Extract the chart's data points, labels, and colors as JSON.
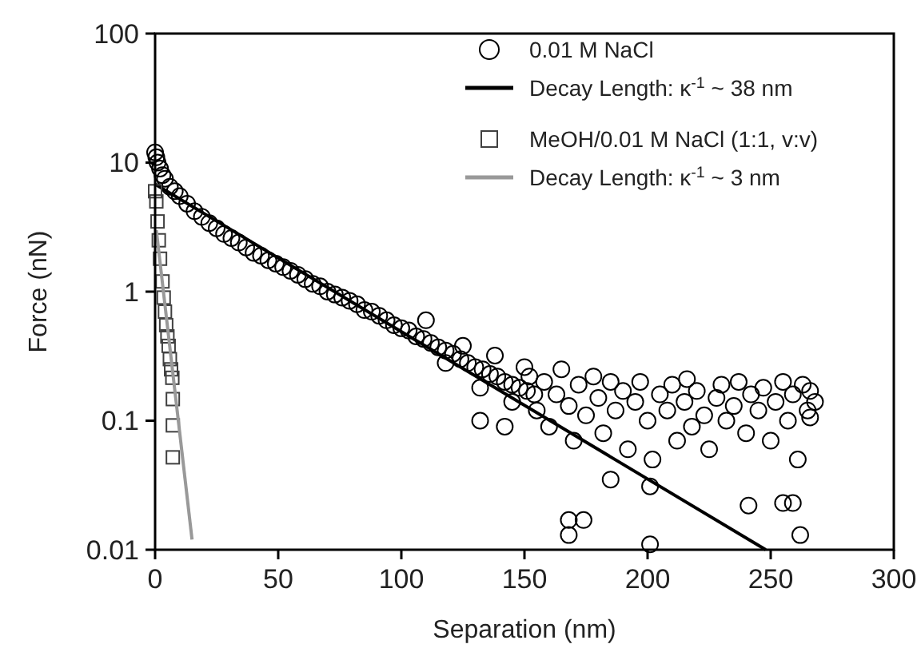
{
  "chart_data": {
    "type": "scatter",
    "xlabel": "Separation (nm)",
    "ylabel": "Force (nN)",
    "log": "y",
    "xlim": [
      0,
      300
    ],
    "ylim": [
      0.01,
      100
    ],
    "xticks": [
      0,
      50,
      100,
      150,
      200,
      250,
      300
    ],
    "yticks": [
      0.01,
      0.1,
      1,
      10,
      100
    ],
    "grid": false,
    "legend": "top right",
    "series": [
      {
        "name": "0.01 M NaCl",
        "marker": "circle",
        "color": "#000000",
        "x": [
          0,
          0.5,
          1,
          2,
          3,
          4,
          6,
          8,
          10,
          13,
          16,
          19,
          22,
          25,
          28,
          31,
          34,
          37,
          40,
          43,
          46,
          49,
          52,
          55,
          58,
          61,
          64,
          67,
          70,
          73,
          76,
          79,
          82,
          85,
          88,
          91,
          94,
          97,
          100,
          103,
          106,
          109,
          112,
          115,
          118,
          121,
          124,
          127,
          130,
          133,
          136,
          139,
          142,
          145,
          148,
          151,
          154,
          110,
          118,
          125,
          132,
          138,
          145,
          150,
          152,
          155,
          158,
          160,
          163,
          165,
          168,
          170,
          172,
          175,
          178,
          180,
          182,
          185,
          187,
          190,
          192,
          195,
          197,
          200,
          202,
          205,
          208,
          210,
          212,
          215,
          216,
          218,
          220,
          223,
          225,
          228,
          230,
          232,
          235,
          237,
          240,
          242,
          245,
          247,
          250,
          252,
          255,
          257,
          259,
          261,
          263,
          265,
          266,
          268,
          168,
          168,
          174,
          201,
          262,
          241,
          255,
          259,
          132,
          142,
          185,
          201,
          266
        ],
        "values": [
          12,
          11,
          10,
          9,
          8,
          7.5,
          6.5,
          6,
          5.5,
          4.8,
          4.2,
          3.8,
          3.4,
          3.1,
          2.8,
          2.6,
          2.4,
          2.2,
          2,
          1.9,
          1.75,
          1.65,
          1.55,
          1.45,
          1.35,
          1.25,
          1.15,
          1.1,
          1,
          0.95,
          0.9,
          0.85,
          0.8,
          0.72,
          0.7,
          0.65,
          0.6,
          0.55,
          0.52,
          0.5,
          0.45,
          0.43,
          0.4,
          0.37,
          0.35,
          0.33,
          0.3,
          0.28,
          0.26,
          0.25,
          0.23,
          0.22,
          0.2,
          0.19,
          0.18,
          0.17,
          0.16,
          0.6,
          0.28,
          0.38,
          0.18,
          0.32,
          0.14,
          0.26,
          0.22,
          0.12,
          0.2,
          0.09,
          0.16,
          0.25,
          0.13,
          0.07,
          0.19,
          0.11,
          0.22,
          0.15,
          0.08,
          0.2,
          0.12,
          0.17,
          0.06,
          0.14,
          0.2,
          0.1,
          0.05,
          0.16,
          0.12,
          0.19,
          0.07,
          0.14,
          0.21,
          0.09,
          0.17,
          0.11,
          0.06,
          0.15,
          0.19,
          0.1,
          0.13,
          0.2,
          0.08,
          0.16,
          0.12,
          0.18,
          0.07,
          0.14,
          0.2,
          0.1,
          0.16,
          0.05,
          0.19,
          0.12,
          0.17,
          0.14,
          0.013,
          0.017,
          0.017,
          0.011,
          0.013,
          0.022,
          0.023,
          0.023,
          0.1,
          0.09,
          0.035,
          0.031,
          0.106
        ]
      },
      {
        "name": "Decay Length: κ$^{-1}$ ~ 38 nm",
        "type": "line",
        "marker": "none",
        "line_style": "solid",
        "color": "#000000",
        "x": [
          0,
          248
        ],
        "values": [
          6.8,
          0.01
        ]
      },
      {
        "name": "MeOH/0.01 M NaCl (1:1, v:v)",
        "marker": "square",
        "color": "#404040",
        "x": [
          0,
          0.5,
          1,
          1.5,
          2,
          3,
          3.5,
          4,
          4.5,
          5,
          5.5,
          6,
          6.5,
          7,
          7.2,
          7.2,
          7.2
        ],
        "values": [
          6,
          5,
          3.5,
          2.5,
          1.8,
          1.2,
          0.9,
          0.7,
          0.55,
          0.45,
          0.38,
          0.3,
          0.25,
          0.215,
          0.147,
          0.092,
          0.052
        ]
      },
      {
        "name": "Decay Length: κ$^{-1}$ ~ 3 nm",
        "type": "line",
        "marker": "none",
        "line_style": "solid",
        "color": "#999999",
        "x": [
          0.5,
          15
        ],
        "values": [
          3,
          0.012
        ]
      }
    ]
  }
}
